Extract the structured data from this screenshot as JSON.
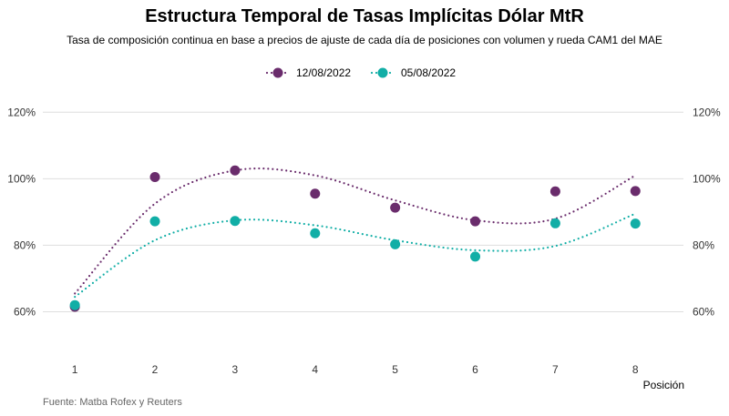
{
  "chart_data": {
    "type": "scatter",
    "title": "Estructura Temporal de Tasas Implícitas Dólar MtR",
    "subtitle": "Tasa de composición continua en base a precios de ajuste de cada día de posiciones con volumen y rueda CAM1 del MAE",
    "xlabel": "Posición",
    "ylabel": "",
    "caption": "Fuente: Matba Rofex y Reuters",
    "x": [
      1,
      2,
      3,
      4,
      5,
      6,
      7,
      8
    ],
    "x_ticks": [
      "1",
      "2",
      "3",
      "4",
      "5",
      "6",
      "7",
      "8"
    ],
    "y_ticks": [
      60,
      80,
      100,
      120
    ],
    "y_tick_labels": [
      "60%",
      "80%",
      "100%",
      "120%"
    ],
    "ylim": [
      47,
      125
    ],
    "xlim": [
      0.6,
      8.6
    ],
    "y_unit": "%",
    "grid": "horizontal",
    "y_axis_both_sides": true,
    "legend_position": "top-center",
    "trend": "smoothed dotted line per series",
    "series": [
      {
        "name": "12/08/2022",
        "color": "#6a2c6c",
        "values": [
          61.5,
          100.5,
          102.5,
          95.5,
          91.3,
          87.2,
          96.2,
          96.3
        ],
        "trend_values": [
          65.5,
          92.5,
          102.5,
          101.0,
          93.5,
          87.5,
          88.0,
          101.0
        ]
      },
      {
        "name": "05/08/2022",
        "color": "#11aea6",
        "values": [
          62.0,
          87.2,
          87.3,
          83.6,
          80.3,
          76.6,
          86.6,
          86.5
        ],
        "trend_values": [
          64.5,
          81.5,
          87.5,
          86.0,
          81.5,
          78.5,
          79.8,
          89.5
        ]
      }
    ]
  }
}
